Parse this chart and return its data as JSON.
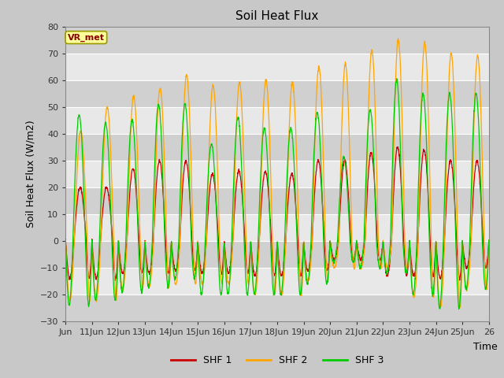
{
  "title": "Soil Heat Flux",
  "ylabel": "Soil Heat Flux (W/m2)",
  "xlabel": "Time",
  "xlim_days": [
    10,
    26
  ],
  "ylim": [
    -30,
    80
  ],
  "yticks": [
    -30,
    -20,
    -10,
    0,
    10,
    20,
    30,
    40,
    50,
    60,
    70,
    80
  ],
  "xtick_labels": [
    "Jun",
    "11Jun",
    "12Jun",
    "13Jun",
    "14Jun",
    "15Jun",
    "16Jun",
    "17Jun",
    "18Jun",
    "19Jun",
    "20Jun",
    "21Jun",
    "22Jun",
    "23Jun",
    "24Jun",
    "25Jun",
    "26"
  ],
  "legend_labels": [
    "SHF 1",
    "SHF 2",
    "SHF 3"
  ],
  "colors": {
    "SHF1": "#cc0000",
    "SHF2": "#ffa500",
    "SHF3": "#00cc00"
  },
  "fig_bg": "#c8c8c8",
  "plot_bg": "#e0e0e0",
  "band_light": "#e8e8e8",
  "band_dark": "#d0d0d0",
  "grid_color": "#ffffff",
  "annotation_text": "VR_met",
  "annotation_color_bg": "#ffff99",
  "annotation_color_border": "#999900",
  "annotation_text_color": "#8b0000"
}
